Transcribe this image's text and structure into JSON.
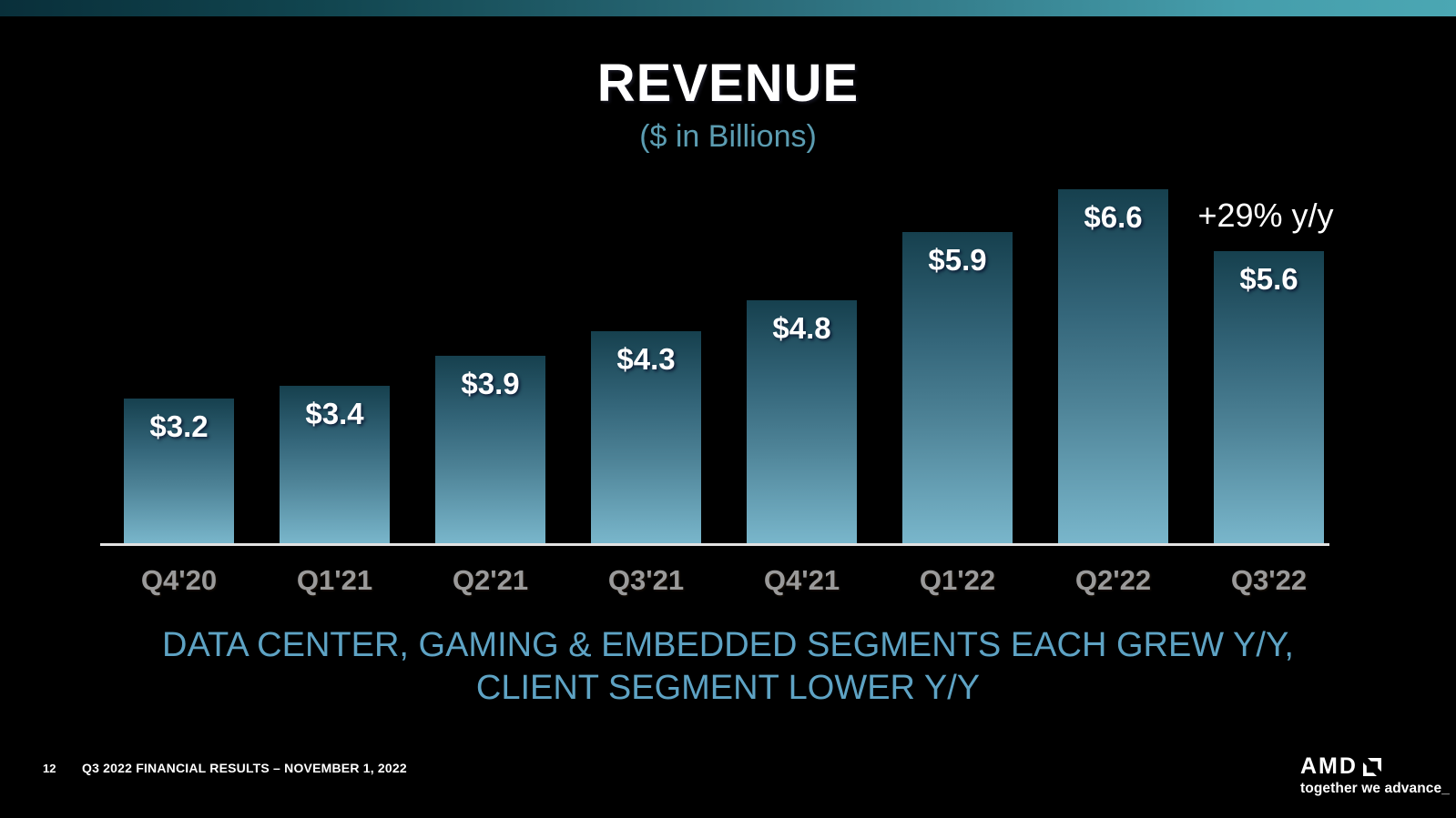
{
  "slide": {
    "title": "REVENUE",
    "subtitle": "($ in Billions)",
    "annotation": "+29% y/y",
    "message_line1": "DATA CENTER, GAMING & EMBEDDED SEGMENTS EACH GREW Y/Y,",
    "message_line2": "CLIENT SEGMENT LOWER Y/Y",
    "page_number": "12",
    "footer_text": "Q3 2022 FINANCIAL RESULTS – NOVEMBER 1, 2022",
    "logo_text": "AMD",
    "logo_tagline": "together we advance_"
  },
  "chart_data": {
    "type": "bar",
    "title": "REVENUE",
    "subtitle": "($ in Billions)",
    "unit": "USD billions",
    "categories": [
      "Q4'20",
      "Q1'21",
      "Q2'21",
      "Q3'21",
      "Q4'21",
      "Q1'22",
      "Q2'22",
      "Q3'22"
    ],
    "values": [
      3.2,
      3.4,
      3.9,
      4.3,
      4.8,
      5.9,
      6.6,
      5.6
    ],
    "value_labels": [
      "$3.2",
      "$3.4",
      "$3.9",
      "$4.3",
      "$4.8",
      "$5.9",
      "$6.6",
      "$5.6"
    ],
    "annotation": {
      "text": "+29% y/y",
      "category": "Q3'22"
    },
    "grid": false,
    "legend": false,
    "value_labels_position": "inside-top",
    "bar_color_top": "#16404e",
    "bar_color_bottom": "#79b6cb",
    "axis_label_color": "#9a9a9a"
  },
  "colors": {
    "background": "#000000",
    "topbar_gradient_left": "#092f3a",
    "topbar_gradient_right": "#4ba7b3",
    "subtitle_teal": "#5b9cb1",
    "message_teal": "#5ea3c4",
    "value_label_white": "#ffffff",
    "axis_line": "#e2e2e2"
  },
  "icons": {
    "brand_mark": "amd-arrow-icon"
  }
}
